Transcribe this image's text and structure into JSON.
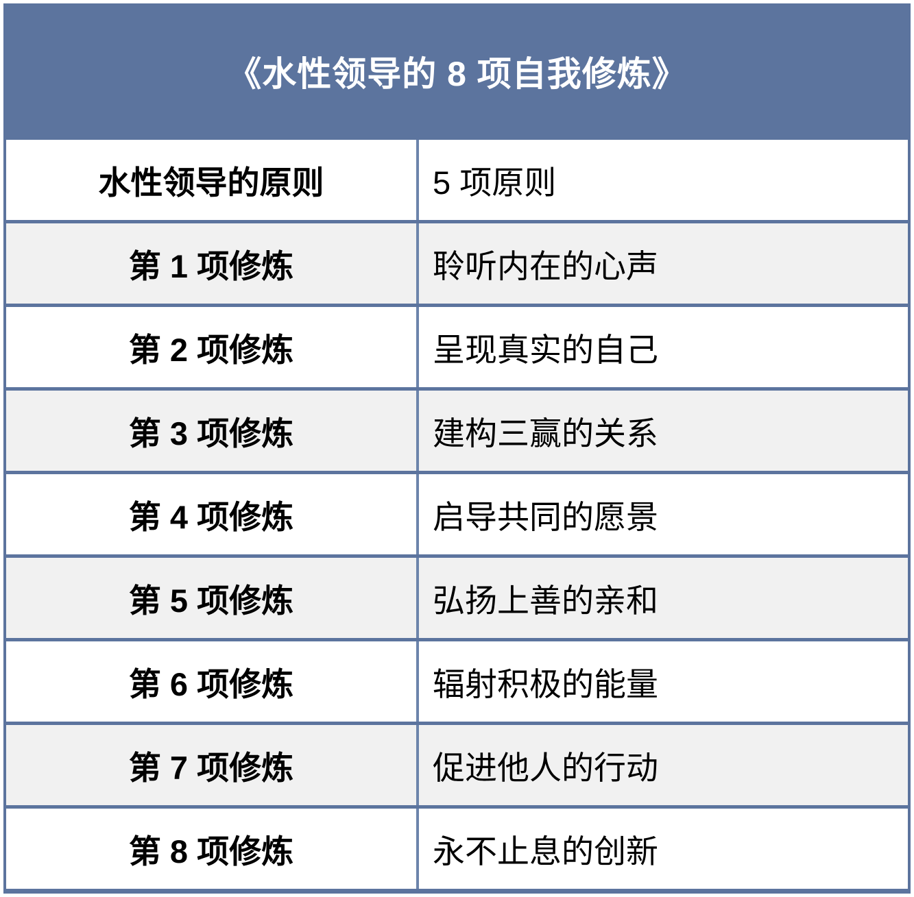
{
  "table": {
    "title": "《水性领导的 8 项自我修炼》",
    "rows": [
      {
        "label": "水性领导的原则",
        "value": "5 项原则"
      },
      {
        "label": "第 1 项修炼",
        "value": "聆听内在的心声"
      },
      {
        "label": "第 2 项修炼",
        "value": "呈现真实的自己"
      },
      {
        "label": "第 3 项修炼",
        "value": "建构三赢的关系"
      },
      {
        "label": "第 4 项修炼",
        "value": "启导共同的愿景"
      },
      {
        "label": "第 5 项修炼",
        "value": "弘扬上善的亲和"
      },
      {
        "label": "第 6 项修炼",
        "value": "辐射积极的能量"
      },
      {
        "label": "第 7 项修炼",
        "value": "促进他人的行动"
      },
      {
        "label": "第 8 项修炼",
        "value": "永不止息的创新"
      }
    ],
    "colors": {
      "header_bg": "#5C749E",
      "border": "#5C749E",
      "column_divider": "#6C84AB",
      "row_bg": "#FFFFFF",
      "row_alt_bg": "#F1F1F1",
      "header_text": "#FFFFFF",
      "body_text": "#000000"
    }
  }
}
